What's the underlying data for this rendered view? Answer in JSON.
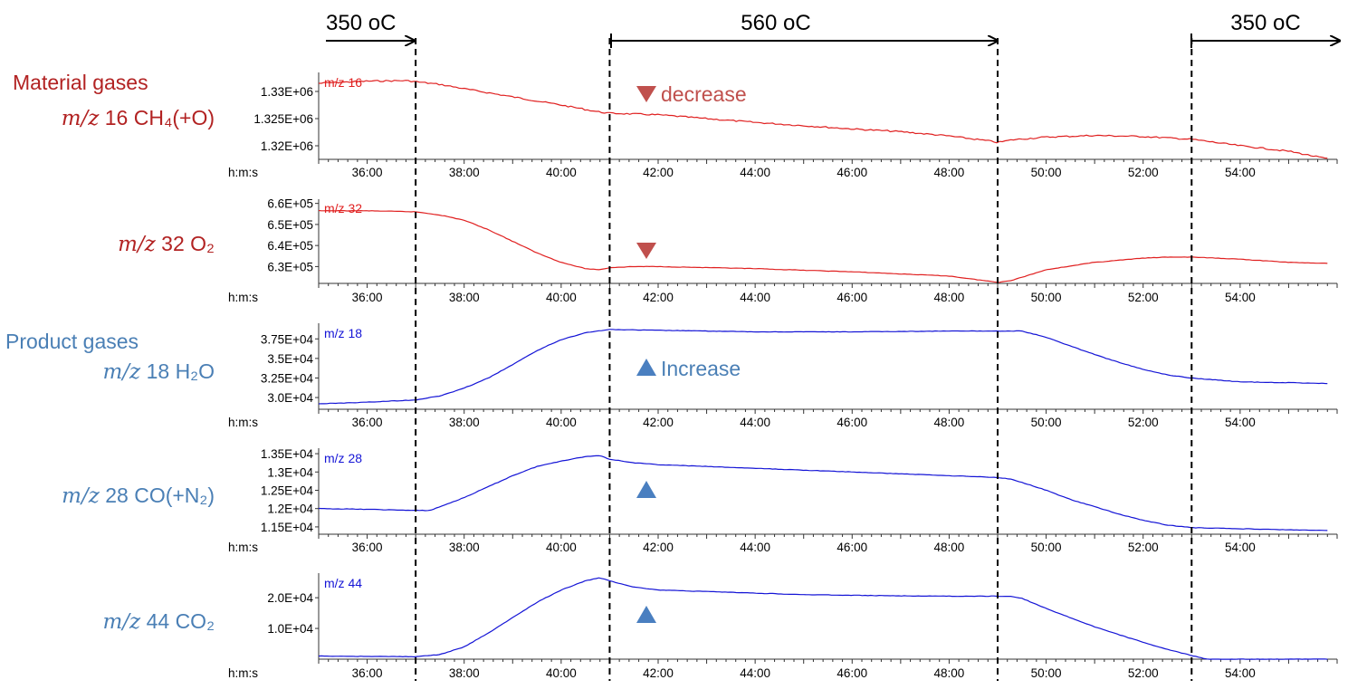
{
  "chart_data": {
    "type": "line",
    "time_axis": {
      "label": "h:m:s",
      "ticks": [
        "36:00",
        "38:00",
        "40:00",
        "42:00",
        "44:00",
        "46:00",
        "48:00",
        "50:00",
        "52:00",
        "54:00"
      ],
      "range_min": [
        35.0,
        56.0
      ]
    },
    "temperature_phases": [
      {
        "label": "350 ",
        "unit": "oC",
        "from_min": 35.0,
        "to_min": 37.0
      },
      {
        "label": "560 ",
        "unit": "oC",
        "from_min": 41.0,
        "to_min": 49.0
      },
      {
        "label": "350 ",
        "unit": "oC",
        "from_min": 53.0,
        "to_min": 56.0
      }
    ],
    "dashed_markers_min": [
      37.0,
      41.0,
      49.0,
      53.0
    ],
    "group_labels": {
      "material": "Material gases",
      "product": "Product gases"
    },
    "colors": {
      "material": "#b22222",
      "product": "#4a7fb5",
      "series_red": "#e02020",
      "series_blue": "#1414d6",
      "tri_red": "#c0504d",
      "tri_blue": "#4a7fc0"
    },
    "panels": [
      {
        "id": "m16",
        "mz_label": "m/z",
        "mz_value": " 16 ",
        "species": "CH₄(+O)",
        "inner_label": "m/z 16",
        "color_group": "material",
        "ylim": [
          1317500,
          1333500
        ],
        "yticks": [
          {
            "v": 1320000,
            "t": "1.32E+06"
          },
          {
            "v": 1325000,
            "t": "1.325E+06"
          },
          {
            "v": 1330000,
            "t": "1.33E+06"
          }
        ],
        "series_x": [
          35.0,
          36.0,
          36.8,
          37.0,
          37.5,
          38.0,
          39.0,
          40.0,
          40.8,
          41.0,
          42.0,
          43.0,
          44.0,
          45.0,
          46.0,
          47.0,
          48.0,
          48.9,
          49.0,
          49.3,
          50.0,
          51.0,
          52.0,
          53.0,
          53.5,
          54.0,
          55.0,
          55.8
        ],
        "series_y": [
          1331500,
          1331900,
          1332000,
          1331800,
          1331300,
          1330500,
          1329000,
          1327500,
          1326200,
          1326000,
          1325700,
          1325000,
          1324300,
          1323700,
          1323100,
          1322600,
          1321800,
          1320800,
          1320600,
          1321100,
          1321600,
          1321900,
          1321700,
          1321200,
          1320600,
          1320000,
          1319000,
          1317600
        ],
        "trend_label": "decrease",
        "trend": "down"
      },
      {
        "id": "m32",
        "mz_label": "m/z",
        "mz_value": " 32 ",
        "species": "O₂",
        "inner_label": "m/z 32",
        "color_group": "material",
        "ylim": [
          622000,
          662000
        ],
        "yticks": [
          {
            "v": 630000,
            "t": "6.3E+05"
          },
          {
            "v": 640000,
            "t": "6.4E+05"
          },
          {
            "v": 650000,
            "t": "6.5E+05"
          },
          {
            "v": 660000,
            "t": "6.6E+05"
          }
        ],
        "series_x": [
          35.0,
          36.0,
          37.0,
          37.5,
          38.0,
          38.5,
          39.0,
          39.5,
          40.0,
          40.5,
          40.8,
          41.0,
          41.5,
          42.0,
          44.0,
          46.0,
          48.0,
          49.0,
          49.3,
          50.0,
          51.0,
          52.0,
          52.5,
          53.0,
          54.0,
          55.0,
          55.8
        ],
        "series_y": [
          656500,
          656500,
          656000,
          654500,
          652000,
          647500,
          642000,
          636500,
          632000,
          629000,
          628500,
          629500,
          630000,
          630000,
          629000,
          627500,
          625500,
          622500,
          623500,
          628500,
          632000,
          634000,
          634500,
          634500,
          633500,
          632000,
          631500
        ],
        "trend_label": "",
        "trend": "down"
      },
      {
        "id": "m18",
        "mz_label": "m/z",
        "mz_value": " 18 ",
        "species": "H₂O",
        "inner_label": "m/z 18",
        "color_group": "product",
        "ylim": [
          28500,
          39500
        ],
        "yticks": [
          {
            "v": 30000,
            "t": "3.0E+04"
          },
          {
            "v": 32500,
            "t": "3.25E+04"
          },
          {
            "v": 35000,
            "t": "3.5E+04"
          },
          {
            "v": 37500,
            "t": "3.75E+04"
          }
        ],
        "series_x": [
          35.0,
          36.0,
          37.0,
          37.5,
          38.0,
          38.5,
          39.0,
          39.5,
          40.0,
          40.5,
          41.0,
          42.0,
          44.0,
          46.0,
          48.0,
          49.5,
          50.0,
          50.5,
          51.0,
          51.5,
          52.0,
          52.5,
          53.0,
          54.0,
          55.0,
          55.8
        ],
        "series_y": [
          29200,
          29400,
          29700,
          30200,
          31200,
          32500,
          34200,
          36000,
          37400,
          38300,
          38700,
          38600,
          38400,
          38400,
          38500,
          38500,
          37700,
          36600,
          35500,
          34500,
          33600,
          32900,
          32500,
          32000,
          31900,
          31800
        ],
        "trend_label": "Increase",
        "trend": "up"
      },
      {
        "id": "m28",
        "mz_label": "m/z",
        "mz_value": " 28 ",
        "species": "CO(+N₂)",
        "inner_label": "m/z 28",
        "color_group": "product",
        "ylim": [
          11300,
          13650
        ],
        "yticks": [
          {
            "v": 11500,
            "t": "1.15E+04"
          },
          {
            "v": 12000,
            "t": "1.2E+04"
          },
          {
            "v": 12500,
            "t": "1.25E+04"
          },
          {
            "v": 13000,
            "t": "1.3E+04"
          },
          {
            "v": 13500,
            "t": "1.35E+04"
          }
        ],
        "series_x": [
          35.0,
          36.0,
          37.0,
          37.3,
          37.6,
          38.0,
          38.5,
          39.0,
          39.5,
          40.0,
          40.5,
          40.8,
          41.0,
          41.5,
          42.0,
          44.0,
          46.0,
          48.0,
          49.0,
          49.3,
          50.0,
          50.5,
          51.0,
          51.5,
          52.0,
          52.5,
          53.0,
          54.0,
          55.0,
          55.8
        ],
        "series_y": [
          12000,
          11980,
          11950,
          11950,
          12100,
          12300,
          12600,
          12900,
          13150,
          13300,
          13420,
          13450,
          13350,
          13250,
          13200,
          13100,
          13000,
          12900,
          12850,
          12800,
          12500,
          12250,
          12050,
          11850,
          11680,
          11550,
          11480,
          11450,
          11420,
          11400
        ],
        "trend_label": "",
        "trend": "up"
      },
      {
        "id": "m44",
        "mz_label": "m/z",
        "mz_value": " 44 ",
        "species": "CO₂",
        "inner_label": "m/z 44",
        "color_group": "product",
        "ylim": [
          0,
          28000
        ],
        "yticks": [
          {
            "v": 10000,
            "t": "1.0E+04"
          },
          {
            "v": 20000,
            "t": "2.0E+04"
          }
        ],
        "series_x": [
          35.0,
          36.0,
          37.0,
          37.5,
          38.0,
          38.5,
          39.0,
          39.5,
          40.0,
          40.5,
          40.8,
          41.0,
          41.5,
          42.0,
          43.0,
          44.0,
          45.0,
          46.0,
          47.0,
          48.0,
          49.0,
          49.3,
          49.5,
          50.0,
          50.5,
          51.0,
          51.5,
          52.0,
          52.5,
          53.0,
          53.3,
          55.8
        ],
        "series_y": [
          1000,
          900,
          800,
          1500,
          4000,
          8500,
          13500,
          18500,
          22500,
          25500,
          26500,
          25500,
          23500,
          22500,
          22000,
          21500,
          21000,
          20800,
          20600,
          20500,
          20500,
          20400,
          19800,
          16500,
          13500,
          10500,
          8000,
          5500,
          3200,
          1200,
          0,
          0
        ],
        "trend_label": "",
        "trend": "up"
      }
    ]
  }
}
